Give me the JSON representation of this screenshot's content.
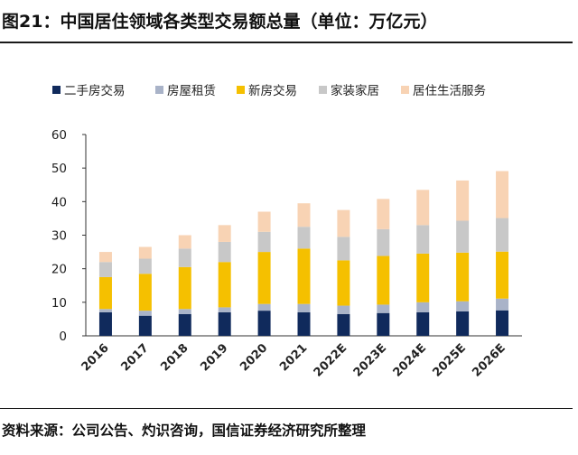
{
  "figure_title": "图21：中国居住领域各类型交易额总量（单位：万亿元）",
  "source_note": "资料来源：公司公告、灼识咨询，国信证券经济研究所整理",
  "chart_data": {
    "type": "bar",
    "stacked": true,
    "categories": [
      "2016",
      "2017",
      "2018",
      "2019",
      "2020",
      "2021",
      "2022E",
      "2023E",
      "2024E",
      "2025E",
      "2026E"
    ],
    "series": [
      {
        "name": "二手房交易",
        "color": "#102a5c",
        "values": [
          7.0,
          6.0,
          6.5,
          7.0,
          7.5,
          7.0,
          6.5,
          6.8,
          7.0,
          7.3,
          7.6
        ]
      },
      {
        "name": "房屋租赁",
        "color": "#a9b3c8",
        "values": [
          1.0,
          1.5,
          1.5,
          1.5,
          2.0,
          2.5,
          2.5,
          2.5,
          3.0,
          3.0,
          3.5
        ]
      },
      {
        "name": "新房交易",
        "color": "#f5c000",
        "values": [
          9.5,
          11.0,
          12.5,
          13.5,
          15.5,
          16.5,
          13.5,
          14.5,
          14.5,
          14.5,
          14.0
        ]
      },
      {
        "name": "家装家居",
        "color": "#c8c8c8",
        "values": [
          4.5,
          4.5,
          5.5,
          6.0,
          6.0,
          6.5,
          7.0,
          8.0,
          8.5,
          9.5,
          10.0
        ]
      },
      {
        "name": "居住生活服务",
        "color": "#f8d3b4",
        "values": [
          3.0,
          3.5,
          4.0,
          5.0,
          6.0,
          7.0,
          8.0,
          9.0,
          10.5,
          12.0,
          14.0
        ]
      }
    ],
    "ylim": [
      0,
      60
    ],
    "yticks": [
      0,
      10,
      20,
      30,
      40,
      50,
      60
    ],
    "legend_position": "top",
    "grid": false
  }
}
